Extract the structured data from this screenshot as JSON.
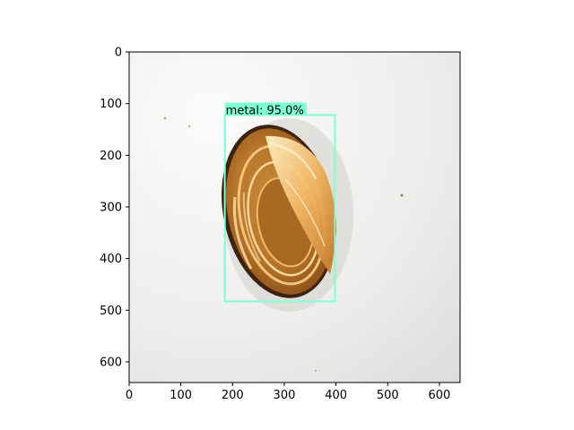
{
  "axes": {
    "x_ticks": [
      "0",
      "100",
      "200",
      "300",
      "400",
      "500",
      "600"
    ],
    "y_ticks": [
      "0",
      "100",
      "200",
      "300",
      "400",
      "500",
      "600"
    ],
    "xlim": [
      0,
      640
    ],
    "ylim": [
      640,
      0
    ]
  },
  "image": {
    "width_units": 640,
    "height_units": 640,
    "background_color": "#ececea",
    "object": "metal can lid"
  },
  "detection": {
    "label_text": "metal: 95.0%",
    "class": "metal",
    "confidence": 95.0,
    "box": {
      "x_min": 185,
      "y_min": 122,
      "x_max": 398,
      "y_max": 483
    },
    "box_color": "#7fffd4"
  }
}
